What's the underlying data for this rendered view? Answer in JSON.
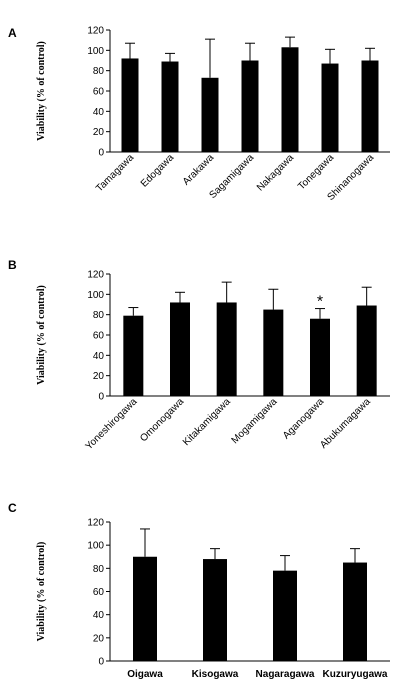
{
  "chart_data": [
    {
      "panel": "A",
      "type": "bar",
      "ylabel": "Viability (% of control)",
      "ylim": [
        0,
        120
      ],
      "yticks": [
        0,
        20,
        40,
        60,
        80,
        100,
        120
      ],
      "categories": [
        "Tamagawa",
        "Edogawa",
        "Arakawa",
        "Sagamigawa",
        "Nakagawa",
        "Tonegawa",
        "Shinanogawa"
      ],
      "values": [
        92,
        89,
        73,
        90,
        103,
        87,
        90
      ],
      "errors": [
        15,
        8,
        38,
        17,
        10,
        14,
        12
      ],
      "annotations": []
    },
    {
      "panel": "B",
      "type": "bar",
      "ylabel": "Viability (% of control)",
      "ylim": [
        0,
        120
      ],
      "yticks": [
        0,
        20,
        40,
        60,
        80,
        100,
        120
      ],
      "categories": [
        "Yoneshirogawa",
        "Omonogawa",
        "Kitakamigawa",
        "Mogamigawa",
        "Aganogawa",
        "Abukumagawa"
      ],
      "values": [
        79,
        92,
        92,
        85,
        76,
        89
      ],
      "errors": [
        8,
        10,
        20,
        20,
        10,
        18
      ],
      "annotations": [
        {
          "category": "Aganogawa",
          "text": "*"
        }
      ]
    },
    {
      "panel": "C",
      "type": "bar",
      "ylabel": "Viability (% of control)",
      "ylim": [
        0,
        120
      ],
      "yticks": [
        0,
        20,
        40,
        60,
        80,
        100,
        120
      ],
      "categories": [
        "Oigawa",
        "Kisogawa",
        "Nagaragawa",
        "Kuzuryugawa"
      ],
      "values": [
        90,
        88,
        78,
        85
      ],
      "errors": [
        24,
        9,
        13,
        12
      ],
      "annotations": []
    }
  ]
}
